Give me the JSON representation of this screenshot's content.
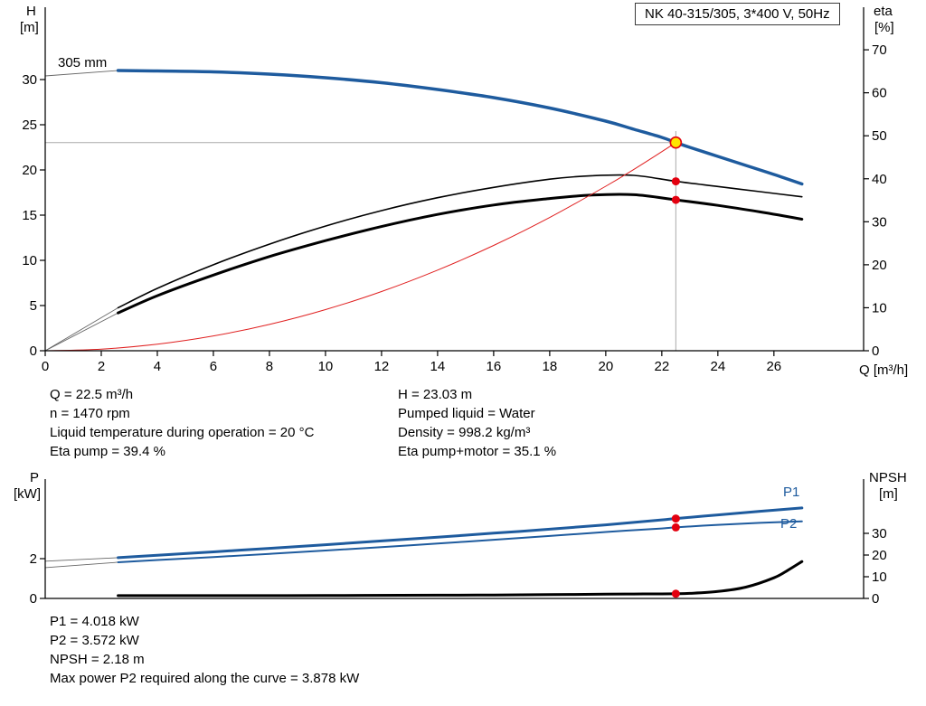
{
  "readouts": {
    "left": [
      "Q = 22.5 m³/h",
      "n = 1470 rpm",
      "Liquid temperature during operation = 20 °C",
      "Eta pump = 39.4 %"
    ],
    "right": [
      "H = 23.03 m",
      "Pumped liquid = Water",
      "Density = 998.2 kg/m³",
      "Eta pump+motor = 35.1 %"
    ]
  },
  "power_readouts": [
    "P1 = 4.018 kW",
    "P2 = 3.572 kW",
    "NPSH = 2.18 m",
    "Max power P2 required along the curve = 3.878 kW"
  ],
  "colors": {
    "curve_blue": "#1e5b9e",
    "marker_red": "#e3000f",
    "duty_yellow": "#ffe500",
    "system_red": "#e02020",
    "ref_gray": "#aaaaaa",
    "axis_black": "#000000"
  },
  "chart_data": [
    {
      "id": "hq-eta",
      "type": "line",
      "title": "NK 40-315/305, 3*400 V, 50Hz",
      "x_axis": {
        "label": "Q [m³/h]",
        "min": 0,
        "max": 29.2,
        "ticks": [
          0,
          2,
          4,
          6,
          8,
          10,
          12,
          14,
          16,
          18,
          20,
          22,
          24,
          26
        ]
      },
      "y_left": {
        "label": "H",
        "unit": "[m]",
        "min": 0,
        "max": 38,
        "ticks": [
          0,
          5,
          10,
          15,
          20,
          25,
          30
        ]
      },
      "y_right": {
        "label": "eta",
        "unit": "[%]",
        "min": 0,
        "max": 79.9,
        "ticks": [
          0,
          10,
          20,
          30,
          40,
          50,
          60,
          70
        ]
      },
      "grid": false,
      "series": [
        {
          "name": "head-lead-in",
          "axis": "left",
          "color": "#666666",
          "width": 0.9,
          "x": [
            0,
            2.6
          ],
          "y": [
            30.4,
            31.0
          ]
        },
        {
          "name": "head-curve-305mm",
          "axis": "left",
          "color": "#1e5b9e",
          "width": 3.5,
          "x": [
            2.6,
            4,
            6,
            8,
            10,
            12,
            14,
            16,
            18,
            20,
            21,
            22,
            22.5,
            23,
            24,
            25,
            26,
            27
          ],
          "y": [
            31.0,
            30.95,
            30.85,
            30.6,
            30.2,
            29.65,
            28.9,
            28.0,
            26.85,
            25.4,
            24.5,
            23.6,
            23.03,
            22.5,
            21.5,
            20.5,
            19.5,
            18.45
          ]
        },
        {
          "name": "eta-pump-lead-in",
          "axis": "right",
          "color": "#666666",
          "width": 0.9,
          "x": [
            0,
            2.6
          ],
          "y": [
            0,
            10.0
          ]
        },
        {
          "name": "eta-pump-curve",
          "axis": "right",
          "color": "#000000",
          "width": 1.6,
          "x": [
            2.6,
            4,
            6,
            8,
            10,
            12,
            14,
            16,
            18,
            19.5,
            21,
            22.5,
            24,
            25.5,
            27
          ],
          "y": [
            10.0,
            14.5,
            20.0,
            24.8,
            29.0,
            32.6,
            35.6,
            38.0,
            39.9,
            40.7,
            40.8,
            39.4,
            38.2,
            37.0,
            35.8
          ]
        },
        {
          "name": "eta-pump-motor-lead-in",
          "axis": "right",
          "color": "#666666",
          "width": 0.9,
          "x": [
            0,
            2.6
          ],
          "y": [
            0,
            8.8
          ]
        },
        {
          "name": "eta-pump-motor-curve",
          "axis": "right",
          "color": "#000000",
          "width": 3,
          "x": [
            2.6,
            4,
            6,
            8,
            10,
            12,
            14,
            16,
            18,
            19.5,
            21,
            22.5,
            24,
            25.5,
            27
          ],
          "y": [
            8.8,
            12.8,
            17.6,
            21.9,
            25.6,
            28.9,
            31.7,
            33.9,
            35.4,
            36.2,
            36.3,
            35.1,
            33.8,
            32.3,
            30.6
          ]
        },
        {
          "name": "system-curve",
          "axis": "left",
          "color": "#e02020",
          "width": 1,
          "x": [
            0,
            2,
            4,
            6,
            8,
            10,
            12,
            14,
            16,
            18,
            20,
            21,
            22,
            22.5
          ],
          "y": [
            0,
            0.18,
            0.73,
            1.64,
            2.91,
            4.55,
            6.55,
            8.92,
            11.65,
            14.74,
            18.2,
            20.06,
            22.02,
            23.03
          ]
        }
      ],
      "ref_lines": [
        {
          "orient": "v",
          "at": 22.5,
          "from": 0,
          "to": 24.3,
          "axis": "left",
          "color": "#aaaaaa"
        },
        {
          "orient": "h",
          "at": 23.03,
          "from": 0,
          "to": 22.5,
          "axis": "left",
          "color": "#aaaaaa"
        }
      ],
      "markers": [
        {
          "name": "duty-point",
          "x": 22.5,
          "y": 23.03,
          "axis": "left",
          "r": 6,
          "fill": "#ffe500",
          "stroke": "#e3000f",
          "stroke_width": 1.6
        },
        {
          "name": "eta-pump-point",
          "x": 22.5,
          "y": 39.4,
          "axis": "right",
          "r": 4.5,
          "fill": "#e3000f"
        },
        {
          "name": "eta-pump-motor-point",
          "x": 22.5,
          "y": 35.1,
          "axis": "right",
          "r": 4.5,
          "fill": "#e3000f"
        }
      ],
      "annotations": [
        {
          "name": "impeller-size-label",
          "text": "305 mm"
        }
      ]
    },
    {
      "id": "p-npsh",
      "type": "line",
      "title": "",
      "x_axis": {
        "label": "",
        "min": 0,
        "max": 29.2,
        "ticks": []
      },
      "y_left": {
        "label": "P",
        "unit": "[kW]",
        "min": 0,
        "max": 6.0,
        "ticks": [
          0,
          2
        ]
      },
      "y_right": {
        "label": "NPSH",
        "unit": "[m]",
        "min": 0,
        "max": 55,
        "ticks": [
          0,
          10,
          20,
          30
        ]
      },
      "grid": false,
      "series": [
        {
          "name": "p1-lead-in",
          "axis": "left",
          "color": "#666666",
          "width": 0.9,
          "x": [
            0,
            2.6
          ],
          "y": [
            1.87,
            2.05
          ]
        },
        {
          "name": "p1-curve",
          "axis": "left",
          "color": "#1e5b9e",
          "width": 3,
          "x": [
            2.6,
            4,
            6,
            8,
            10,
            12,
            14,
            16,
            18,
            20,
            22,
            22.5,
            24,
            25.5,
            27
          ],
          "y": [
            2.05,
            2.17,
            2.34,
            2.52,
            2.7,
            2.89,
            3.08,
            3.28,
            3.48,
            3.7,
            3.95,
            4.018,
            4.2,
            4.38,
            4.55
          ]
        },
        {
          "name": "p2-lead-in",
          "axis": "left",
          "color": "#666666",
          "width": 0.9,
          "x": [
            0,
            2.6
          ],
          "y": [
            1.55,
            1.82
          ]
        },
        {
          "name": "p2-curve",
          "axis": "left",
          "color": "#1e5b9e",
          "width": 2,
          "x": [
            2.6,
            4,
            6,
            8,
            10,
            12,
            14,
            16,
            18,
            20,
            22,
            22.5,
            24,
            25.5,
            27
          ],
          "y": [
            1.82,
            1.93,
            2.08,
            2.24,
            2.41,
            2.58,
            2.76,
            2.95,
            3.14,
            3.34,
            3.52,
            3.572,
            3.7,
            3.8,
            3.878
          ]
        },
        {
          "name": "npsh-curve",
          "axis": "right",
          "color": "#000000",
          "width": 3,
          "x": [
            2.6,
            6,
            10,
            14,
            16,
            18,
            20,
            21,
            22,
            22.5,
            23,
            24,
            25,
            26,
            26.5,
            27
          ],
          "y": [
            1.3,
            1.3,
            1.35,
            1.5,
            1.6,
            1.75,
            1.95,
            2.05,
            2.1,
            2.18,
            2.35,
            3.2,
            5.2,
            9.5,
            13.0,
            17.0
          ]
        }
      ],
      "ref_lines": [],
      "markers": [
        {
          "name": "p1-point",
          "x": 22.5,
          "y": 4.018,
          "axis": "left",
          "r": 4.5,
          "fill": "#e3000f"
        },
        {
          "name": "p2-point",
          "x": 22.5,
          "y": 3.572,
          "axis": "left",
          "r": 4.5,
          "fill": "#e3000f"
        },
        {
          "name": "npsh-point",
          "x": 22.5,
          "y": 2.18,
          "axis": "right",
          "r": 4.5,
          "fill": "#e3000f"
        }
      ],
      "annotations": [
        {
          "name": "p1-label",
          "text": "P1"
        },
        {
          "name": "p2-label",
          "text": "P2"
        }
      ]
    }
  ]
}
